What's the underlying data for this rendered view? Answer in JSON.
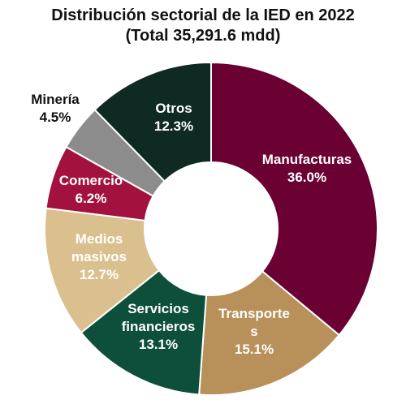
{
  "chart_data": {
    "type": "pie",
    "title": "Distribución sectorial de la IED en 2022",
    "subtitle": "(Total 35,291.6 mdd)",
    "slices": [
      {
        "lines": [
          "Manufacturas"
        ],
        "value": 36.0,
        "value_label": "36.0%",
        "color": "#6b0033",
        "text_color": "#ffffff"
      },
      {
        "lines": [
          "Transporte",
          "s"
        ],
        "value": 15.1,
        "value_label": "15.1%",
        "color": "#b8905a",
        "text_color": "#ffffff"
      },
      {
        "lines": [
          "Servicios",
          "financieros"
        ],
        "value": 13.1,
        "value_label": "13.1%",
        "color": "#0e4f3c",
        "text_color": "#ffffff"
      },
      {
        "lines": [
          "Medios",
          "masivos"
        ],
        "value": 12.7,
        "value_label": "12.7%",
        "color": "#dbc08f",
        "text_color": "#ffffff"
      },
      {
        "lines": [
          "Comercio"
        ],
        "value": 6.2,
        "value_label": "6.2%",
        "color": "#a3123f",
        "text_color": "#ffffff"
      },
      {
        "lines": [
          "Minería"
        ],
        "value": 4.5,
        "value_label": "4.5%",
        "color": "#8c8c8c",
        "text_color": "#111111"
      },
      {
        "lines": [
          "Otros"
        ],
        "value": 12.3,
        "value_label": "12.3%",
        "color": "#0f2a22",
        "text_color": "#ffffff"
      }
    ]
  }
}
